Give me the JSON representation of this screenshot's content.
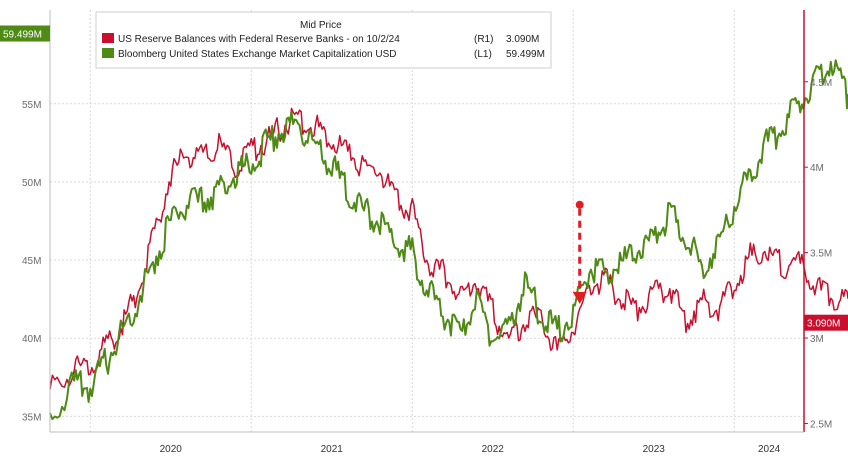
{
  "chart_data": {
    "type": "line",
    "title": "Mid Price",
    "colors": {
      "reserves": "#c8102e",
      "market_cap": "#4e8a14",
      "arrow": "#e31b23",
      "grid": "#d9d9d9"
    },
    "x_ticks": [
      "2020",
      "2021",
      "2022",
      "2023",
      "2024"
    ],
    "left_axis": {
      "ticks": [
        "35M",
        "40M",
        "45M",
        "50M",
        "55M"
      ],
      "ylim": [
        34,
        61
      ],
      "unit": "M"
    },
    "right_axis": {
      "ticks": [
        "2.5M",
        "3M",
        "3.5M",
        "4M",
        "4.5M"
      ],
      "ylim": [
        2.45,
        4.92
      ],
      "unit": "M"
    },
    "tags": {
      "left": {
        "text": "59.499M",
        "value": 59.499
      },
      "right": {
        "text": "3.090M",
        "value": 3.09
      }
    },
    "legend": [
      {
        "series": "reserves",
        "name": "US Reserve Balances with Federal Reserve Banks - on 10/2/24",
        "axis": "(R1)",
        "value": "3.090M"
      },
      {
        "series": "market_cap",
        "name": "Bloomberg United States Exchange Market Capitalization USD",
        "axis": "(L1)",
        "value": "59.499M"
      }
    ],
    "series": [
      {
        "name": "US Reserve Balances with Federal Reserve Banks - on 10/2/24",
        "axis": "right",
        "x": [
          2019.75,
          2019.9,
          2020.0,
          2020.1,
          2020.2,
          2020.3,
          2020.4,
          2020.5,
          2020.6,
          2020.7,
          2020.8,
          2020.9,
          2021.0,
          2021.1,
          2021.2,
          2021.3,
          2021.4,
          2021.5,
          2021.6,
          2021.7,
          2021.8,
          2021.9,
          2022.0,
          2022.1,
          2022.2,
          2022.3,
          2022.4,
          2022.5,
          2022.6,
          2022.7,
          2022.8,
          2022.9,
          2023.0,
          2023.1,
          2023.2,
          2023.3,
          2023.4,
          2023.5,
          2023.6,
          2023.7,
          2023.8,
          2023.9,
          2024.0,
          2024.1,
          2024.2,
          2024.3,
          2024.4,
          2024.5,
          2024.6,
          2024.7,
          2024.76
        ],
        "y": [
          2.7,
          2.82,
          2.85,
          2.95,
          3.08,
          3.3,
          3.62,
          3.95,
          4.08,
          4.05,
          4.12,
          4.0,
          4.1,
          4.15,
          4.25,
          4.28,
          4.24,
          4.18,
          4.08,
          4.0,
          3.98,
          3.8,
          3.75,
          3.45,
          3.38,
          3.22,
          3.35,
          3.15,
          2.98,
          3.1,
          3.12,
          2.92,
          3.05,
          3.32,
          3.34,
          3.22,
          3.18,
          3.26,
          3.3,
          3.1,
          3.22,
          3.18,
          3.32,
          3.48,
          3.52,
          3.42,
          3.45,
          3.3,
          3.25,
          3.2,
          3.09
        ]
      },
      {
        "name": "Bloomberg United States Exchange Market Capitalization USD",
        "axis": "left",
        "x": [
          2019.75,
          2019.9,
          2020.0,
          2020.1,
          2020.2,
          2020.3,
          2020.4,
          2020.5,
          2020.6,
          2020.7,
          2020.8,
          2020.9,
          2021.0,
          2021.1,
          2021.2,
          2021.3,
          2021.4,
          2021.5,
          2021.6,
          2021.7,
          2021.8,
          2021.9,
          2022.0,
          2022.1,
          2022.2,
          2022.3,
          2022.4,
          2022.5,
          2022.6,
          2022.7,
          2022.8,
          2022.9,
          2023.0,
          2023.1,
          2023.2,
          2023.3,
          2023.4,
          2023.5,
          2023.6,
          2023.7,
          2023.8,
          2023.9,
          2024.0,
          2024.1,
          2024.2,
          2024.3,
          2024.4,
          2024.5,
          2024.6,
          2024.7,
          2024.76
        ],
        "y": [
          35.2,
          37.0,
          36.8,
          38.5,
          40.5,
          42.5,
          45.0,
          47.5,
          48.5,
          48.8,
          49.5,
          50.5,
          51.2,
          52.5,
          53.5,
          53.8,
          52.0,
          51.0,
          49.5,
          48.0,
          47.5,
          46.0,
          45.5,
          43.0,
          41.5,
          40.0,
          42.5,
          40.0,
          40.5,
          43.5,
          41.5,
          40.5,
          41.5,
          44.5,
          44.0,
          44.8,
          45.5,
          46.5,
          48.0,
          46.5,
          44.5,
          46.0,
          48.5,
          50.5,
          52.5,
          53.5,
          55.0,
          56.5,
          57.8,
          55.5,
          59.5
        ]
      }
    ]
  }
}
